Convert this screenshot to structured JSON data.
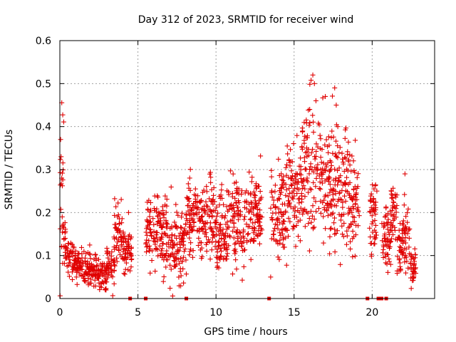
{
  "chart_data": {
    "type": "scatter",
    "title": "Day 312 of 2023, SRMTID for receiver wind",
    "xlabel": "GPS time / hours",
    "ylabel": "SRMTID / TECUs",
    "xlim": [
      0,
      24
    ],
    "ylim": [
      0,
      0.6
    ],
    "xticks": [
      0,
      5,
      10,
      15,
      20
    ],
    "yticks": [
      0,
      0.1,
      0.2,
      0.3,
      0.4,
      0.5,
      0.6
    ],
    "xtick_labels": [
      "0",
      "5",
      "10",
      "15",
      "20"
    ],
    "ytick_labels": [
      "0",
      "0.1",
      "0.2",
      "0.3",
      "0.4",
      "0.5",
      "0.6"
    ],
    "grid": true,
    "marker": "+",
    "color": "#e00000",
    "segments": [
      [
        0.0,
        0.25,
        0.26,
        0.12
      ],
      [
        0.25,
        0.5,
        0.12,
        0.03
      ],
      [
        0.5,
        1.0,
        0.09,
        0.02
      ],
      [
        1.0,
        1.5,
        0.08,
        0.02
      ],
      [
        1.5,
        2.0,
        0.07,
        0.02
      ],
      [
        2.0,
        2.5,
        0.06,
        0.02
      ],
      [
        2.5,
        3.0,
        0.05,
        0.02
      ],
      [
        3.0,
        3.5,
        0.08,
        0.03
      ],
      [
        3.5,
        4.0,
        0.15,
        0.03
      ],
      [
        4.0,
        4.6,
        0.11,
        0.03
      ],
      [
        5.5,
        6.5,
        0.16,
        0.04
      ],
      [
        6.5,
        7.5,
        0.14,
        0.05
      ],
      [
        7.5,
        8.1,
        0.12,
        0.04
      ],
      [
        8.1,
        9.0,
        0.19,
        0.04
      ],
      [
        9.0,
        10.0,
        0.18,
        0.05
      ],
      [
        10.0,
        11.0,
        0.17,
        0.05
      ],
      [
        11.0,
        12.0,
        0.18,
        0.05
      ],
      [
        12.0,
        13.0,
        0.19,
        0.05
      ],
      [
        13.5,
        14.5,
        0.2,
        0.05
      ],
      [
        14.5,
        15.5,
        0.24,
        0.06
      ],
      [
        15.5,
        16.5,
        0.31,
        0.08
      ],
      [
        16.5,
        17.5,
        0.28,
        0.08
      ],
      [
        17.5,
        18.5,
        0.26,
        0.07
      ],
      [
        18.5,
        19.2,
        0.22,
        0.06
      ],
      [
        19.8,
        20.3,
        0.19,
        0.05
      ],
      [
        20.6,
        21.2,
        0.15,
        0.04
      ],
      [
        21.2,
        21.6,
        0.2,
        0.04
      ],
      [
        21.6,
        22.0,
        0.12,
        0.03
      ],
      [
        22.0,
        22.4,
        0.14,
        0.05
      ],
      [
        22.4,
        22.8,
        0.07,
        0.02
      ]
    ],
    "spikes": [
      [
        0.05,
        0.37
      ],
      [
        0.08,
        0.33
      ],
      [
        0.12,
        0.28
      ],
      [
        0.15,
        0.19
      ],
      [
        16.2,
        0.52
      ],
      [
        16.3,
        0.5
      ],
      [
        16.4,
        0.46
      ],
      [
        17.0,
        0.47
      ],
      [
        17.6,
        0.49
      ],
      [
        17.7,
        0.45
      ],
      [
        16.0,
        0.44
      ],
      [
        17.8,
        0.4
      ],
      [
        13.5,
        0.05
      ],
      [
        4.4,
        0.2
      ],
      [
        3.7,
        0.19
      ],
      [
        22.1,
        0.29
      ],
      [
        20.3,
        0.25
      ],
      [
        21.3,
        0.24
      ]
    ],
    "zero_points": [
      4.5,
      5.5,
      8.1,
      13.4,
      19.7,
      20.4,
      20.6,
      20.9
    ]
  }
}
